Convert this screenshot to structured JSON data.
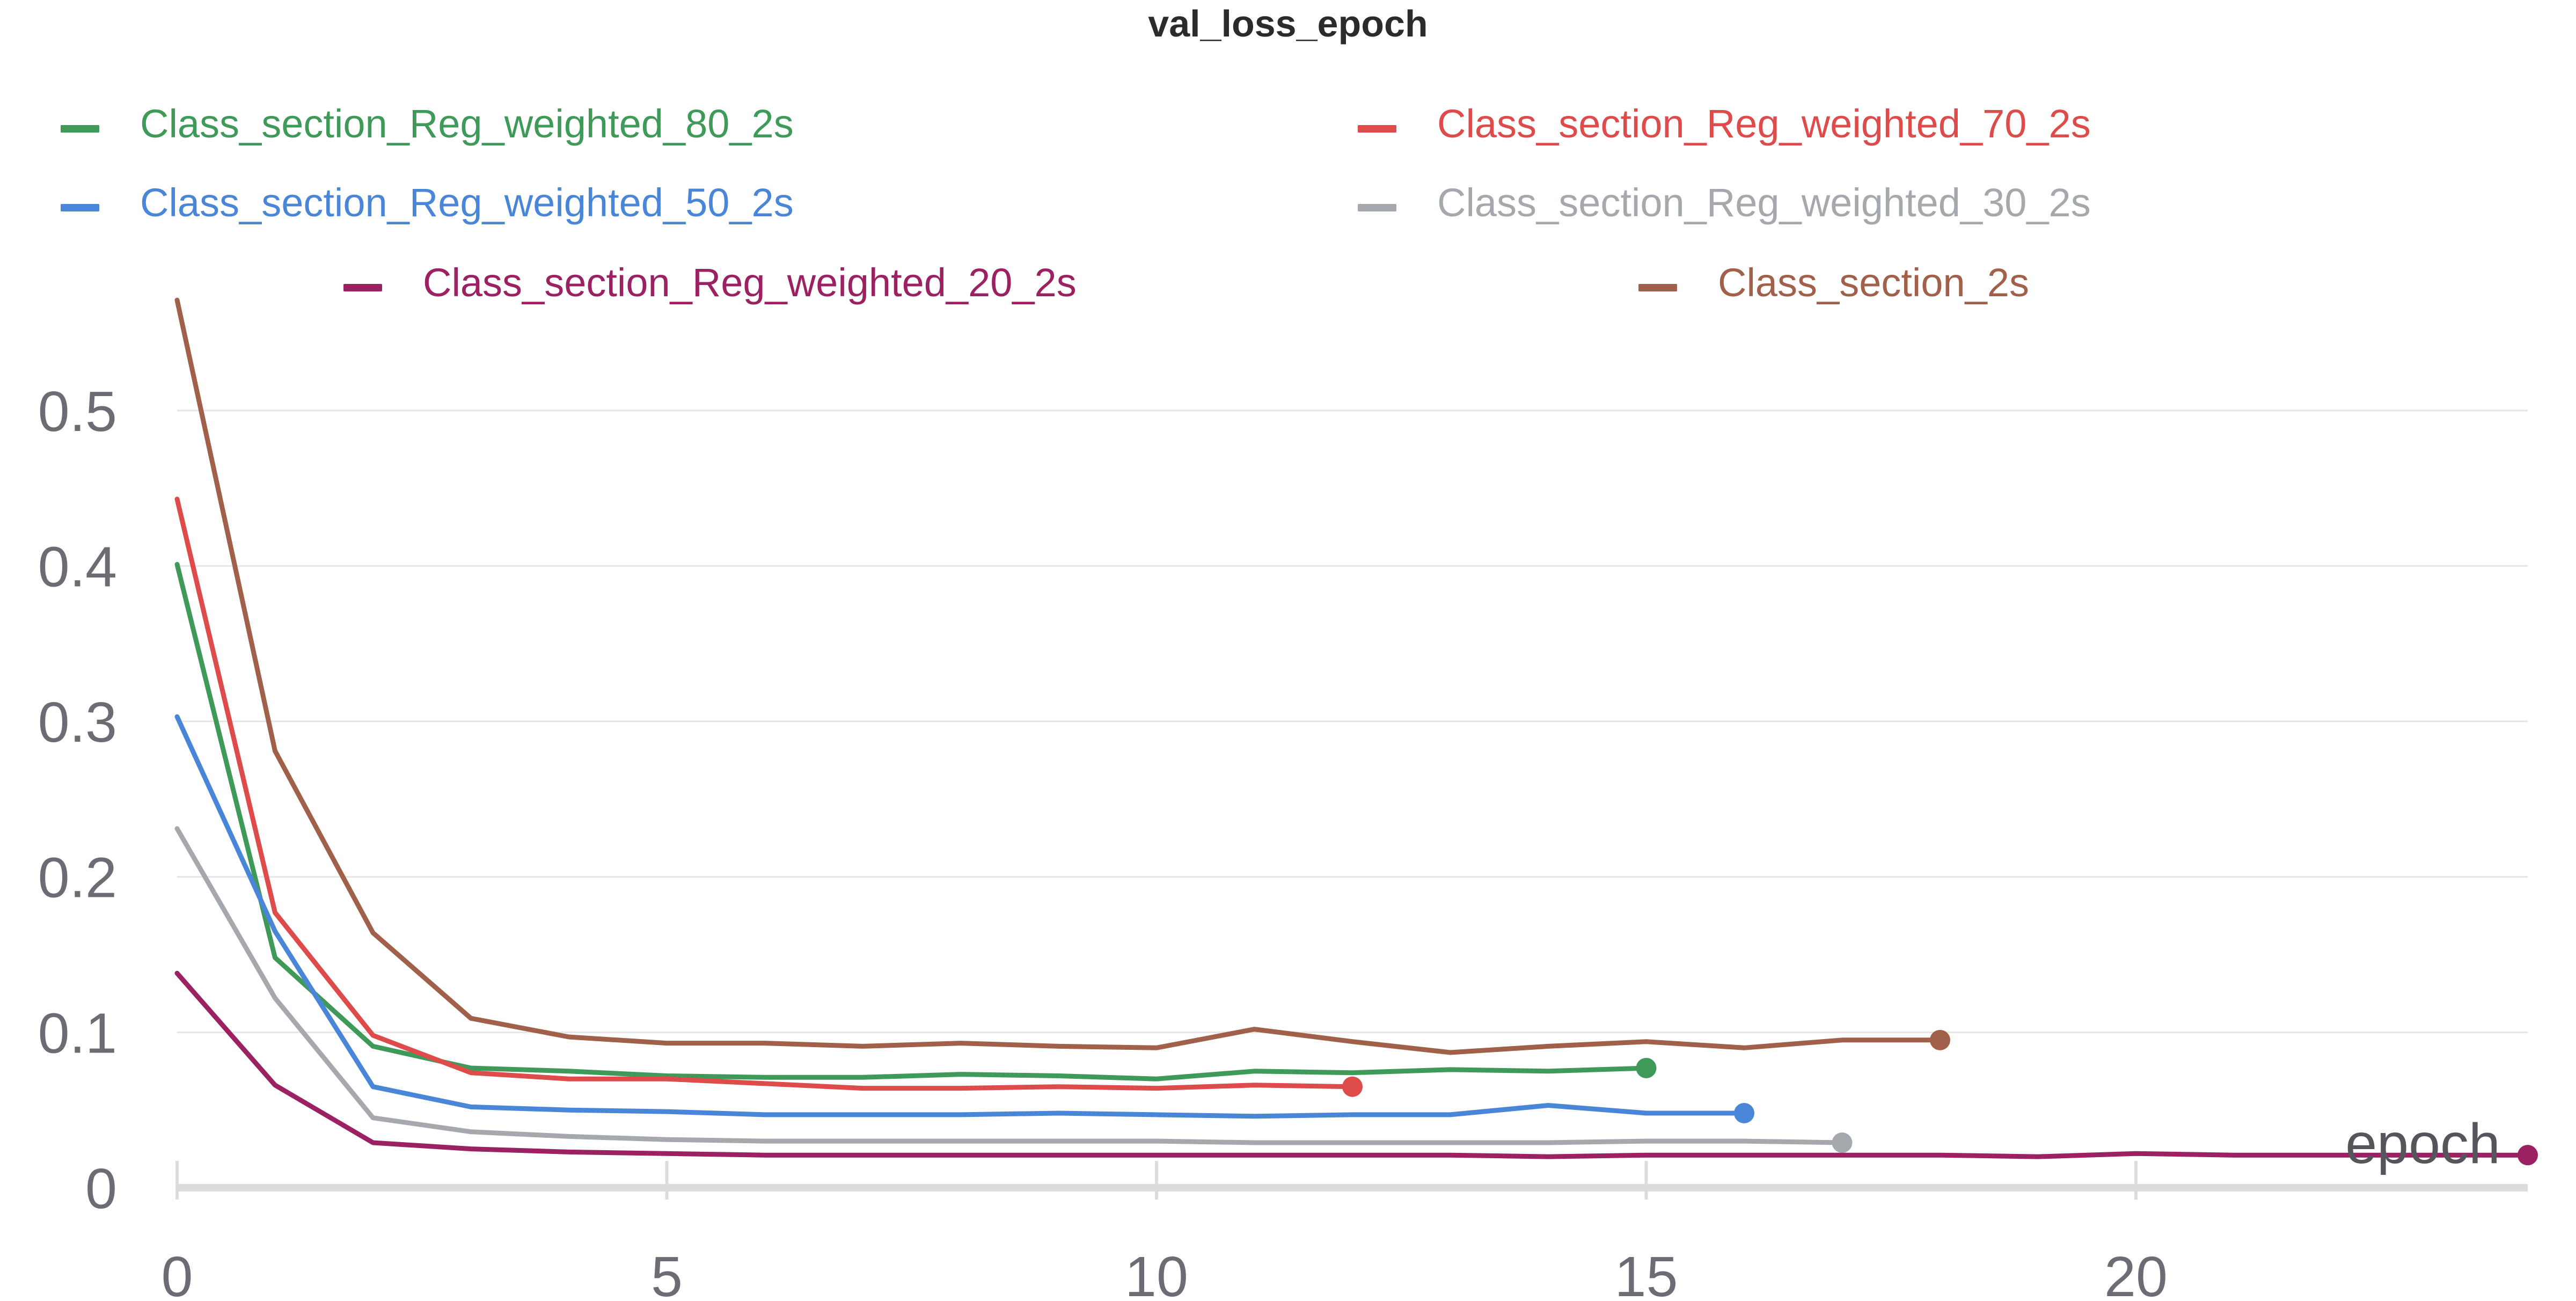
{
  "chart_data": {
    "type": "line",
    "title": "val_loss_epoch",
    "xlabel": "epoch",
    "ylabel": "",
    "xlim": [
      0,
      24
    ],
    "ylim": [
      0,
      0.57
    ],
    "x_ticks": [
      0,
      5,
      10,
      15,
      20
    ],
    "y_ticks": [
      0,
      0.1,
      0.2,
      0.3,
      0.4,
      0.5
    ],
    "y_tick_labels": [
      "0",
      "0.1",
      "0.2",
      "0.3",
      "0.4",
      "0.5"
    ],
    "grid": true,
    "legend_position": "top",
    "series": [
      {
        "name": "Class_section_Reg_weighted_80_2s",
        "color": "#3f9a5a",
        "x": [
          0,
          1,
          2,
          3,
          4,
          5,
          6,
          7,
          8,
          9,
          10,
          11,
          12,
          13,
          14,
          15
        ],
        "y": [
          0.401,
          0.148,
          0.091,
          0.077,
          0.075,
          0.072,
          0.071,
          0.071,
          0.073,
          0.072,
          0.07,
          0.075,
          0.074,
          0.076,
          0.075,
          0.077
        ]
      },
      {
        "name": "Class_section_Reg_weighted_70_2s",
        "color": "#dd4b4b",
        "x": [
          0,
          1,
          2,
          3,
          4,
          5,
          6,
          7,
          8,
          9,
          10,
          11,
          12
        ],
        "y": [
          0.443,
          0.177,
          0.098,
          0.074,
          0.07,
          0.07,
          0.067,
          0.064,
          0.064,
          0.065,
          0.064,
          0.066,
          0.065
        ]
      },
      {
        "name": "Class_section_Reg_weighted_50_2s",
        "color": "#4a86d8",
        "x": [
          0,
          1,
          2,
          3,
          4,
          5,
          6,
          7,
          8,
          9,
          10,
          11,
          12,
          13,
          14,
          15,
          16
        ],
        "y": [
          0.303,
          0.165,
          0.065,
          0.052,
          0.05,
          0.049,
          0.047,
          0.047,
          0.047,
          0.048,
          0.047,
          0.046,
          0.047,
          0.047,
          0.053,
          0.048,
          0.048
        ]
      },
      {
        "name": "Class_section_Reg_weighted_30_2s",
        "color": "#a5a8ac",
        "x": [
          0,
          1,
          2,
          3,
          4,
          5,
          6,
          7,
          8,
          9,
          10,
          11,
          12,
          13,
          14,
          15,
          16,
          17
        ],
        "y": [
          0.231,
          0.122,
          0.045,
          0.036,
          0.033,
          0.031,
          0.03,
          0.03,
          0.03,
          0.03,
          0.03,
          0.029,
          0.029,
          0.029,
          0.029,
          0.03,
          0.03,
          0.029
        ]
      },
      {
        "name": "Class_section_Reg_weighted_20_2s",
        "color": "#9b2163",
        "x": [
          0,
          1,
          2,
          3,
          4,
          5,
          6,
          7,
          8,
          9,
          10,
          11,
          12,
          13,
          14,
          15,
          16,
          17,
          18,
          19,
          20,
          21,
          22,
          23,
          24
        ],
        "y": [
          0.138,
          0.066,
          0.029,
          0.025,
          0.023,
          0.022,
          0.021,
          0.021,
          0.021,
          0.021,
          0.021,
          0.021,
          0.021,
          0.021,
          0.02,
          0.021,
          0.021,
          0.021,
          0.021,
          0.02,
          0.022,
          0.021,
          0.021,
          0.021,
          0.021
        ]
      },
      {
        "name": "Class_section_2s",
        "color": "#a0604a",
        "x": [
          0,
          1,
          2,
          3,
          4,
          5,
          6,
          7,
          8,
          9,
          10,
          11,
          12,
          13,
          14,
          15,
          16,
          17,
          18
        ],
        "y": [
          0.571,
          0.281,
          0.164,
          0.109,
          0.097,
          0.093,
          0.093,
          0.091,
          0.093,
          0.091,
          0.09,
          0.102,
          0.094,
          0.087,
          0.091,
          0.094,
          0.09,
          0.095,
          0.095
        ]
      }
    ]
  }
}
